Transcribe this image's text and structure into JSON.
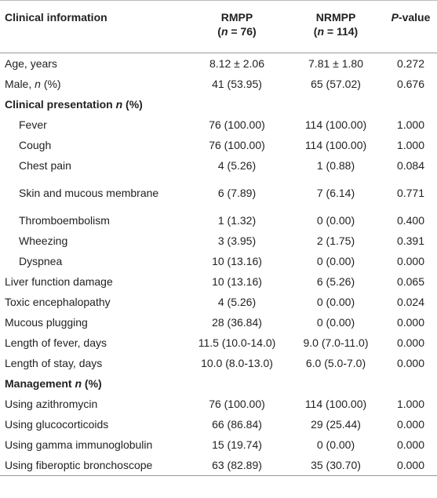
{
  "header": {
    "col1": "Clinical information",
    "col2": {
      "name": "RMPP",
      "sub": [
        {
          "text": "("
        },
        {
          "text": "n",
          "italic": true
        },
        {
          "text": "= 76)"
        }
      ]
    },
    "col3": {
      "name": "NRMPP",
      "sub": [
        {
          "text": "("
        },
        {
          "text": "n",
          "italic": true
        },
        {
          "text": "= 114)"
        }
      ]
    },
    "col4": [
      {
        "text": "P",
        "italic": true
      },
      {
        "text": "-value"
      }
    ]
  },
  "rows": [
    {
      "label": [
        {
          "text": "Age, years"
        }
      ],
      "rmpp": "8.12 ± 2.06",
      "nrmpp": "7.81 ± 1.80",
      "p": "0.272"
    },
    {
      "label": [
        {
          "text": "Male,"
        },
        {
          "text": "n",
          "italic": true
        },
        {
          "text": "(%)"
        }
      ],
      "rmpp": "41 (53.95)",
      "nrmpp": "65 (57.02)",
      "p": "0.676"
    },
    {
      "section": true,
      "label": [
        {
          "text": "Clinical presentation"
        },
        {
          "text": "n",
          "italic": true
        },
        {
          "text": "(%)"
        }
      ]
    },
    {
      "indent": true,
      "label": [
        {
          "text": "Fever"
        }
      ],
      "rmpp": "76 (100.00)",
      "nrmpp": "114 (100.00)",
      "p": "1.000"
    },
    {
      "indent": true,
      "label": [
        {
          "text": "Cough"
        }
      ],
      "rmpp": "76 (100.00)",
      "nrmpp": "114 (100.00)",
      "p": "1.000"
    },
    {
      "indent": true,
      "label": [
        {
          "text": "Chest pain"
        }
      ],
      "rmpp": "4 (5.26)",
      "nrmpp": "1 (0.88)",
      "p": "0.084"
    },
    {
      "indent": true,
      "label": [
        {
          "text": "Skin and mucous membrane"
        }
      ],
      "rmpp": "6 (7.89)",
      "nrmpp": "7 (6.14)",
      "p": "0.771"
    },
    {
      "indent": true,
      "label": [
        {
          "text": "Thromboembolism"
        }
      ],
      "rmpp": "1 (1.32)",
      "nrmpp": "0 (0.00)",
      "p": "0.400"
    },
    {
      "indent": true,
      "label": [
        {
          "text": "Wheezing"
        }
      ],
      "rmpp": "3 (3.95)",
      "nrmpp": "2 (1.75)",
      "p": "0.391"
    },
    {
      "indent": true,
      "label": [
        {
          "text": "Dyspnea"
        }
      ],
      "rmpp": "10 (13.16)",
      "nrmpp": "0 (0.00)",
      "p": "0.000"
    },
    {
      "label": [
        {
          "text": "Liver function damage"
        }
      ],
      "rmpp": "10 (13.16)",
      "nrmpp": "6 (5.26)",
      "p": "0.065"
    },
    {
      "label": [
        {
          "text": "Toxic encephalopathy"
        }
      ],
      "rmpp": "4 (5.26)",
      "nrmpp": "0 (0.00)",
      "p": "0.024"
    },
    {
      "label": [
        {
          "text": "Mucous plugging"
        }
      ],
      "rmpp": "28 (36.84)",
      "nrmpp": "0 (0.00)",
      "p": "0.000"
    },
    {
      "label": [
        {
          "text": "Length of fever, days"
        }
      ],
      "rmpp": "11.5 (10.0-14.0)",
      "nrmpp": "9.0 (7.0-11.0)",
      "p": "0.000"
    },
    {
      "label": [
        {
          "text": "Length of stay, days"
        }
      ],
      "rmpp": "10.0 (8.0-13.0)",
      "nrmpp": "6.0 (5.0-7.0)",
      "p": "0.000"
    },
    {
      "section": true,
      "label": [
        {
          "text": "Management"
        },
        {
          "text": "n",
          "italic": true
        },
        {
          "text": "(%)"
        }
      ]
    },
    {
      "label": [
        {
          "text": "Using azithromycin"
        }
      ],
      "rmpp": "76 (100.00)",
      "nrmpp": "114 (100.00)",
      "p": "1.000"
    },
    {
      "label": [
        {
          "text": "Using glucocorticoids"
        }
      ],
      "rmpp": "66 (86.84)",
      "nrmpp": "29 (25.44)",
      "p": "0.000"
    },
    {
      "label": [
        {
          "text": "Using gamma immunoglobulin"
        }
      ],
      "rmpp": "15 (19.74)",
      "nrmpp": "0 (0.00)",
      "p": "0.000"
    },
    {
      "label": [
        {
          "text": "Using fiberoptic bronchoscope"
        }
      ],
      "rmpp": "63 (82.89)",
      "nrmpp": "35 (30.70)",
      "p": "0.000"
    }
  ]
}
